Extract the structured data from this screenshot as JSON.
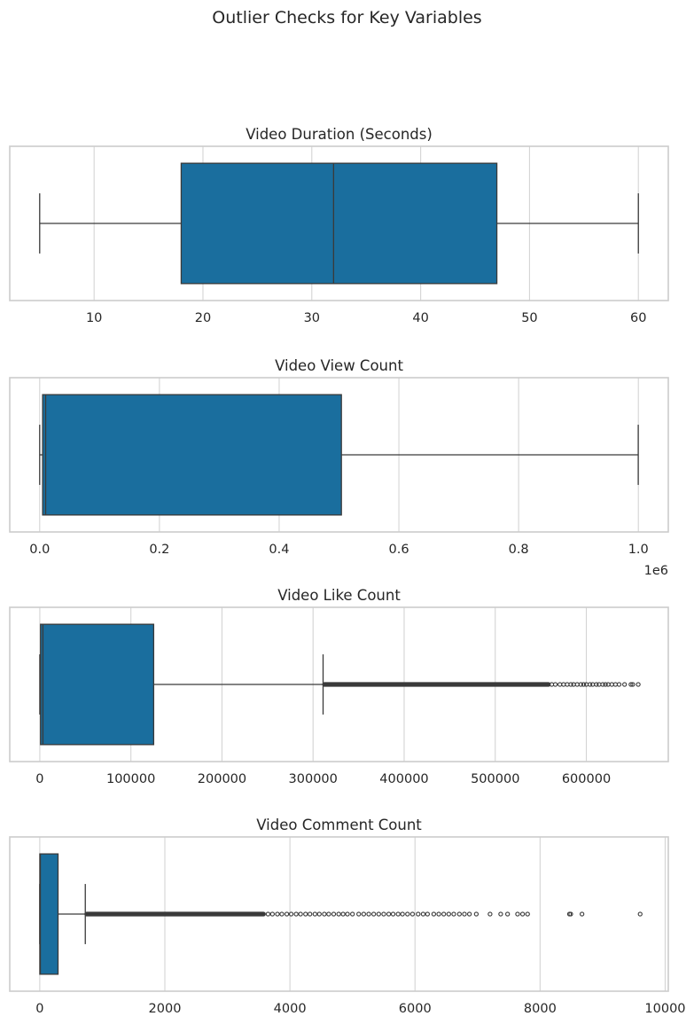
{
  "figure": {
    "suptitle": "Outlier Checks for Key Variables"
  },
  "colors": {
    "box_fill": "#1a6e9e",
    "line": "#3a3a3a",
    "grid": "#d4d4d4",
    "frame": "#cccccc"
  },
  "chart_data": [
    {
      "type": "boxplot",
      "title": "Video Duration (Seconds)",
      "xlim": [
        2.25,
        62.75
      ],
      "ticks": [
        10,
        20,
        30,
        40,
        50,
        60
      ],
      "tick_labels": [
        "10",
        "20",
        "30",
        "40",
        "50",
        "60"
      ],
      "offset_label": "",
      "stats": {
        "whisker_low": 5,
        "q1": 18,
        "median": 32,
        "q3": 47,
        "whisker_high": 60
      },
      "outliers": [],
      "grid": true
    },
    {
      "type": "boxplot",
      "title": "Video View Count",
      "xlim": [
        -50000,
        1050000
      ],
      "ticks": [
        0,
        200000,
        400000,
        600000,
        800000,
        1000000
      ],
      "tick_labels": [
        "0.0",
        "0.2",
        "0.4",
        "0.6",
        "0.8",
        "1.0"
      ],
      "offset_label": "1e6",
      "stats": {
        "whisker_low": 20,
        "q1": 4900,
        "median": 9950,
        "q3": 504000,
        "whisker_high": 999800
      },
      "outliers": [],
      "grid": true
    },
    {
      "type": "boxplot",
      "title": "Video Like Count",
      "xlim": [
        -33000,
        690000
      ],
      "ticks": [
        0,
        100000,
        200000,
        300000,
        400000,
        500000,
        600000
      ],
      "tick_labels": [
        "0",
        "100000",
        "200000",
        "300000",
        "400000",
        "500000",
        "600000"
      ],
      "offset_label": "",
      "stats": {
        "whisker_low": 0,
        "q1": 800,
        "median": 3400,
        "q3": 125000,
        "whisker_high": 311000
      },
      "outliers": {
        "dense_range": [
          311000,
          560000
        ],
        "points": [
          562000,
          566000,
          571000,
          575000,
          579000,
          583000,
          586000,
          590000,
          594000,
          597000,
          600000,
          604000,
          607000,
          611000,
          614000,
          618000,
          621000,
          624000,
          628000,
          632000,
          636000,
          642000,
          649000,
          651000,
          657000
        ]
      },
      "grid": true
    },
    {
      "type": "boxplot",
      "title": "Video Comment Count",
      "xlim": [
        -480,
        10050
      ],
      "ticks": [
        0,
        2000,
        4000,
        6000,
        8000,
        10000
      ],
      "tick_labels": [
        "0",
        "2000",
        "4000",
        "6000",
        "8000",
        "10000"
      ],
      "offset_label": "",
      "stats": {
        "whisker_low": 0,
        "q1": 1,
        "median": 9,
        "q3": 292,
        "whisker_high": 728
      },
      "outliers": {
        "dense_range": [
          728,
          3600
        ],
        "points": [
          3650,
          3720,
          3800,
          3870,
          3950,
          4020,
          4100,
          4170,
          4250,
          4320,
          4400,
          4470,
          4550,
          4620,
          4700,
          4780,
          4850,
          4920,
          5000,
          5100,
          5180,
          5260,
          5340,
          5420,
          5500,
          5580,
          5650,
          5730,
          5800,
          5880,
          5960,
          6050,
          6130,
          6200,
          6300,
          6380,
          6460,
          6540,
          6620,
          6710,
          6790,
          6870,
          6980,
          7200,
          7370,
          7480,
          7640,
          7720,
          7800,
          8470,
          8490,
          8670,
          9600
        ]
      },
      "grid": true
    }
  ]
}
